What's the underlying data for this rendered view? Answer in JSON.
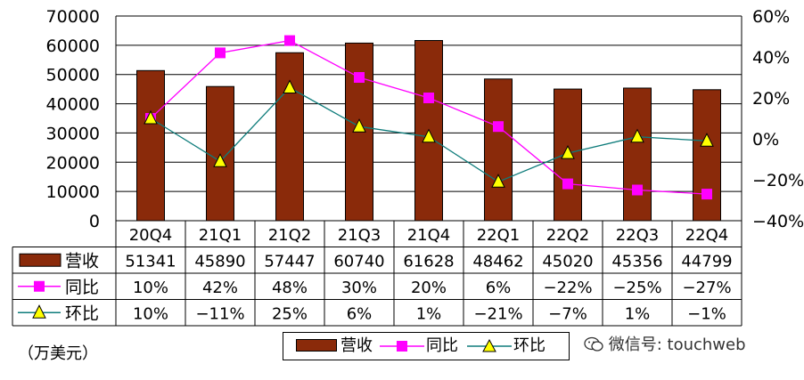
{
  "chart_data": {
    "type": "bar",
    "categories": [
      "20Q4",
      "21Q1",
      "21Q2",
      "21Q3",
      "21Q4",
      "22Q1",
      "22Q2",
      "22Q3",
      "22Q4"
    ],
    "series": [
      {
        "name": "营收",
        "type": "bar",
        "axis": "left",
        "color": "#8a2a0a",
        "values": [
          51341,
          45890,
          57447,
          60740,
          61628,
          48462,
          45020,
          45356,
          44799
        ],
        "labels": [
          "51341",
          "45890",
          "57447",
          "60740",
          "61628",
          "48462",
          "45020",
          "45356",
          "44799"
        ]
      },
      {
        "name": "同比",
        "type": "line",
        "axis": "right",
        "color": "#ff00ff",
        "marker": "square",
        "values": [
          10,
          42,
          48,
          30,
          20,
          6,
          -22,
          -25,
          -27
        ],
        "labels": [
          "10%",
          "42%",
          "48%",
          "30%",
          "20%",
          "6%",
          "−22%",
          "−25%",
          "−27%"
        ]
      },
      {
        "name": "环比",
        "type": "line",
        "axis": "right",
        "color": "#0e7c7b",
        "marker": "triangle",
        "values": [
          10,
          -11,
          25,
          6,
          1,
          -21,
          -7,
          1,
          -1
        ],
        "labels": [
          "10%",
          "−11%",
          "25%",
          "6%",
          "1%",
          "−21%",
          "−7%",
          "1%",
          "−1%"
        ]
      }
    ],
    "y_left": {
      "min": 0,
      "max": 70000,
      "ticks": [
        "0",
        "10000",
        "20000",
        "30000",
        "40000",
        "50000",
        "60000",
        "70000"
      ]
    },
    "y_right": {
      "min": -40,
      "max": 60,
      "ticks": [
        "−40%",
        "−20%",
        "0%",
        "20%",
        "40%",
        "60%"
      ]
    },
    "grid": true,
    "legend_position": "bottom"
  },
  "unit_label": "（万美元）",
  "legend": {
    "items": [
      "营收",
      "同比",
      "环比"
    ]
  },
  "watermark": "微信号: touchweb"
}
